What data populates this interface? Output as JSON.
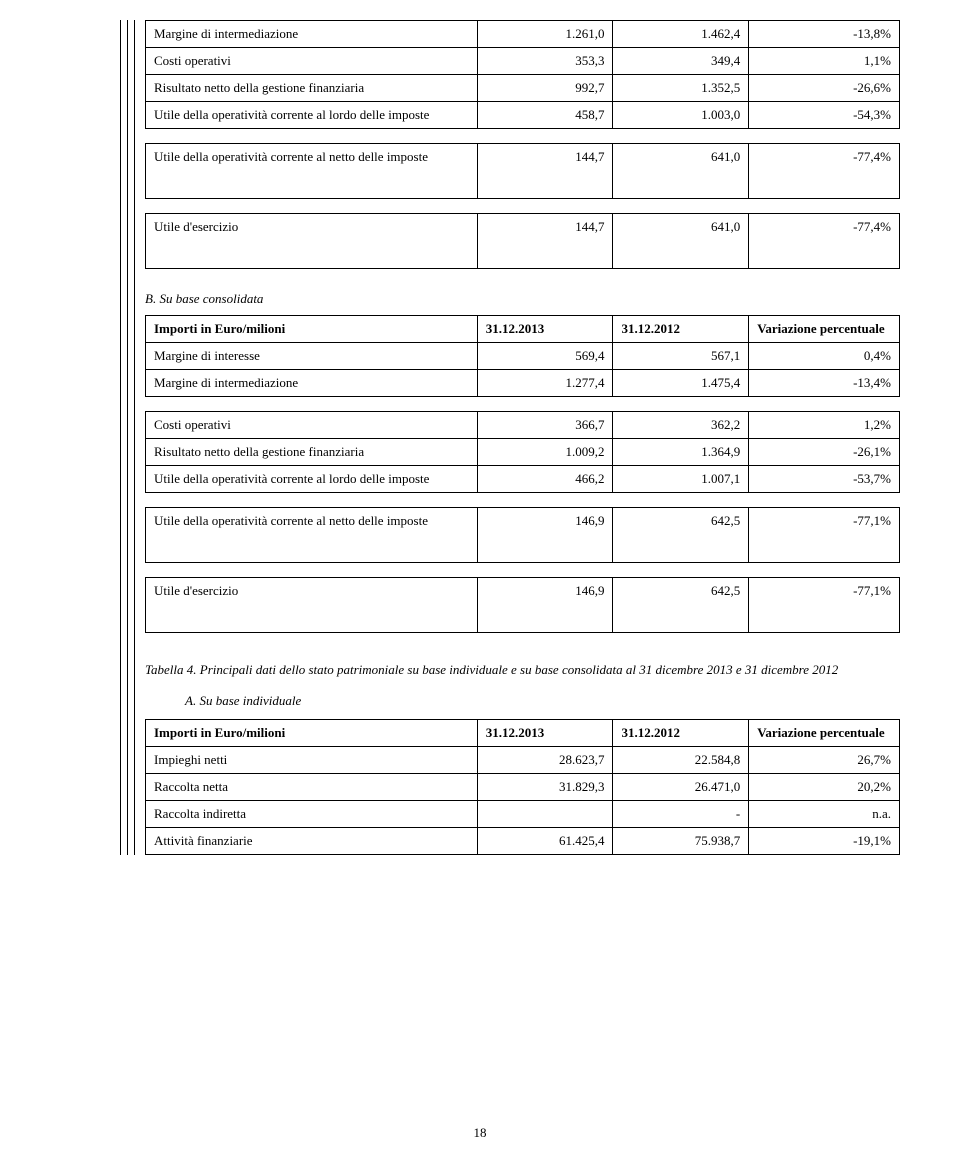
{
  "top_table": {
    "rows": [
      {
        "label": "Margine di intermediazione",
        "v1": "1.261,0",
        "v2": "1.462,4",
        "v3": "-13,8%"
      },
      {
        "label": "Costi operativi",
        "v1": "353,3",
        "v2": "349,4",
        "v3": "1,1%"
      },
      {
        "label": "Risultato netto della gestione finanziaria",
        "v1": "992,7",
        "v2": "1.352,5",
        "v3": "-26,6%"
      },
      {
        "label": "Utile della operatività corrente al lordo delle imposte",
        "v1": "458,7",
        "v2": "1.003,0",
        "v3": "-54,3%"
      }
    ],
    "row_netto": {
      "label": "Utile della operatività corrente al netto delle imposte",
      "v1": "144,7",
      "v2": "641,0",
      "v3": "-77,4%"
    },
    "row_esercizio": {
      "label": "Utile d'esercizio",
      "v1": "144,7",
      "v2": "641,0",
      "v3": "-77,4%"
    }
  },
  "section_b_heading": "B. Su base consolidata",
  "table_b": {
    "head": {
      "c1": "Importi in Euro/milioni",
      "c2": "31.12.2013",
      "c3": "31.12.2012",
      "c4": "Variazione percentuale"
    },
    "rows1": [
      {
        "label": "Margine di interesse",
        "v1": "569,4",
        "v2": "567,1",
        "v3": "0,4%"
      },
      {
        "label": "Margine di intermediazione",
        "v1": "1.277,4",
        "v2": "1.475,4",
        "v3": "-13,4%"
      }
    ],
    "rows2": [
      {
        "label": "Costi operativi",
        "v1": "366,7",
        "v2": "362,2",
        "v3": "1,2%"
      },
      {
        "label": "Risultato netto della gestione finanziaria",
        "v1": "1.009,2",
        "v2": "1.364,9",
        "v3": "-26,1%"
      },
      {
        "label": "Utile della operatività corrente al lordo delle imposte",
        "v1": "466,2",
        "v2": "1.007,1",
        "v3": "-53,7%"
      }
    ],
    "row_netto": {
      "label": "Utile della operatività corrente al netto delle imposte",
      "v1": "146,9",
      "v2": "642,5",
      "v3": "-77,1%"
    },
    "row_esercizio": {
      "label": "Utile d'esercizio",
      "v1": "146,9",
      "v2": "642,5",
      "v3": "-77,1%"
    }
  },
  "caption4": "Tabella 4. Principali dati dello stato patrimoniale su base individuale e su base consolidata al 31 dicembre 2013 e 31 dicembre 2012",
  "sub_ind": "A. Su base individuale",
  "table_c": {
    "head": {
      "c1": "Importi in Euro/milioni",
      "c2": "31.12.2013",
      "c3": "31.12.2012",
      "c4": "Variazione percentuale"
    },
    "rows": [
      {
        "label": "Impieghi netti",
        "v1": "28.623,7",
        "v2": "22.584,8",
        "v3": "26,7%"
      },
      {
        "label": "Raccolta netta",
        "v1": "31.829,3",
        "v2": "26.471,0",
        "v3": "20,2%"
      },
      {
        "label": "Raccolta indiretta",
        "v1": "",
        "v2": "-",
        "v3": "n.a."
      },
      {
        "label": "Attività finanziarie",
        "v1": "61.425,4",
        "v2": "75.938,7",
        "v3": "-19,1%"
      }
    ]
  },
  "page_number": "18"
}
